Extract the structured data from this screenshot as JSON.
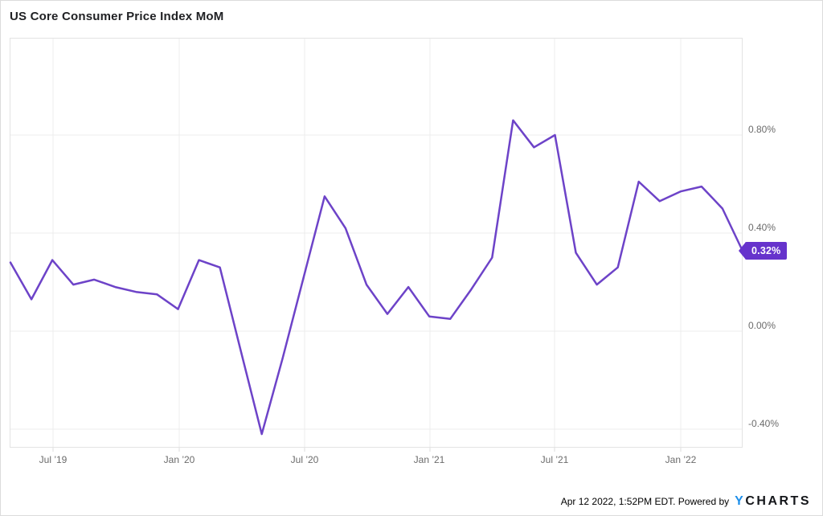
{
  "title": "US Core Consumer Price Index MoM",
  "badge": {
    "label": "0.32%",
    "color": "#6633cc"
  },
  "footer": {
    "text": "Apr 12 2022, 1:52PM EDT. Powered by",
    "logo_y": "Y",
    "logo_rest": "CHARTS"
  },
  "colors": {
    "line": "#6d43c8",
    "badge": "#6633cc",
    "logo_blue": "#1e8fea",
    "gridline": "#ececec",
    "axis_text": "#6b6b6b"
  },
  "chart_data": {
    "type": "line",
    "title": "US Core Consumer Price Index MoM",
    "unit": "percent",
    "grid": true,
    "legend_position": "none",
    "x_tick_labels": [
      "Jul ’19",
      "Jan ’20",
      "Jul ’20",
      "Jan ’21",
      "Jul ’21",
      "Jan ’22"
    ],
    "y_tick_labels": [
      "0.80%",
      "0.40%",
      "0.00%",
      "-0.40%"
    ],
    "y_tick_values": [
      0.8,
      0.4,
      0.0,
      -0.4
    ],
    "ylim": [
      -0.48,
      1.2
    ],
    "series": [
      {
        "name": "US Core Consumer Price Index MoM",
        "months": [
          "Apr 2019",
          "May 2019",
          "Jun 2019",
          "Jul 2019",
          "Aug 2019",
          "Sep 2019",
          "Oct 2019",
          "Nov 2019",
          "Dec 2019",
          "Jan 2020",
          "Feb 2020",
          "Mar 2020",
          "Apr 2020",
          "May 2020",
          "Jun 2020",
          "Jul 2020",
          "Aug 2020",
          "Sep 2020",
          "Oct 2020",
          "Nov 2020",
          "Dec 2020",
          "Jan 2021",
          "Feb 2021",
          "Mar 2021",
          "Apr 2021",
          "May 2021",
          "Jun 2021",
          "Jul 2021",
          "Aug 2021",
          "Sep 2021",
          "Oct 2021",
          "Nov 2021",
          "Dec 2021",
          "Jan 2022",
          "Feb 2022",
          "Mar 2022"
        ],
        "values": [
          0.28,
          0.13,
          0.29,
          0.19,
          0.21,
          0.18,
          0.16,
          0.15,
          0.09,
          0.29,
          0.26,
          -0.08,
          -0.42,
          -0.11,
          0.22,
          0.55,
          0.42,
          0.19,
          0.07,
          0.18,
          0.06,
          0.05,
          0.17,
          0.3,
          0.86,
          0.75,
          0.8,
          0.32,
          0.19,
          0.26,
          0.61,
          0.53,
          0.57,
          0.59,
          0.5,
          0.32
        ]
      }
    ],
    "last_point_label": "0.32%"
  }
}
